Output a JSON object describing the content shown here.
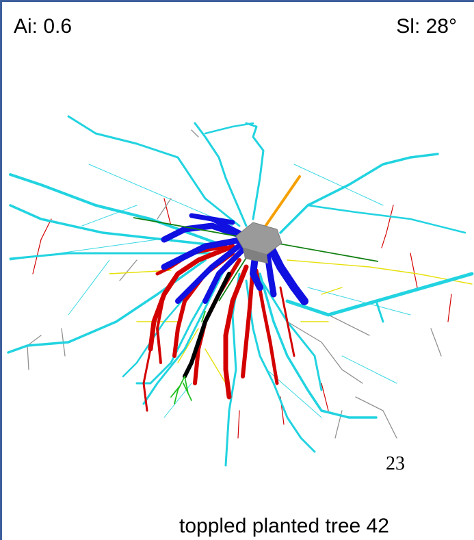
{
  "overlay": {
    "ai_text": "Ai: 0.6",
    "sl_text": "Sl: 28°",
    "index_number": "23",
    "caption": "toppled planted tree 42"
  },
  "colors": {
    "frame_border": "#3d5f9c",
    "lateral_roots": "#22d3e0",
    "deep_roots_blue": "#1010e0",
    "sinker_roots_red": "#d30000",
    "fine_roots_yellow": "#e6e00a",
    "fine_roots_grey": "#909090",
    "taproot_black": "#000000",
    "tip_green": "#20c020",
    "axis_orange": "#f5a000",
    "axis_green": "#108010",
    "stump_grey": "#9a9a9a"
  }
}
